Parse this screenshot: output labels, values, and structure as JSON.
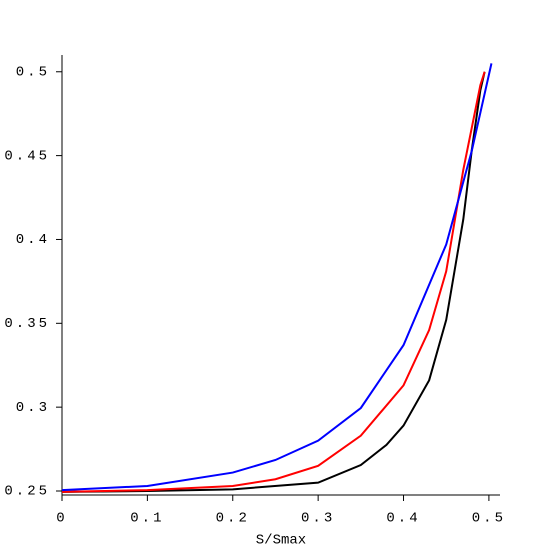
{
  "chart_data": {
    "type": "line",
    "xlabel": "S/Smax",
    "xlim": [
      0,
      0.513
    ],
    "ylim": [
      0.25,
      0.51
    ],
    "xticks": [
      0,
      0.1,
      0.2,
      0.3,
      0.4,
      0.5
    ],
    "yticks": [
      0.25,
      0.3,
      0.35,
      0.4,
      0.45,
      0.5
    ],
    "series": [
      {
        "color": "#000000",
        "x": [
          0,
          0.1,
          0.2,
          0.3,
          0.35,
          0.38,
          0.4,
          0.43,
          0.45,
          0.47,
          0.48,
          0.49,
          0.495
        ],
        "values": [
          0.2495,
          0.25,
          0.251,
          0.255,
          0.2655,
          0.2775,
          0.289,
          0.316,
          0.352,
          0.412,
          0.4535,
          0.489,
          0.5
        ]
      },
      {
        "color": "#ff0000",
        "x": [
          0,
          0.1,
          0.2,
          0.25,
          0.3,
          0.35,
          0.4,
          0.43,
          0.45,
          0.47,
          0.49,
          0.495
        ],
        "values": [
          0.2495,
          0.2505,
          0.253,
          0.257,
          0.265,
          0.283,
          0.313,
          0.346,
          0.381,
          0.4415,
          0.492,
          0.5
        ]
      },
      {
        "color": "#0000ff",
        "x": [
          0,
          0.1,
          0.2,
          0.25,
          0.3,
          0.35,
          0.4,
          0.45,
          0.48,
          0.503
        ],
        "values": [
          0.2505,
          0.253,
          0.261,
          0.2685,
          0.28,
          0.2995,
          0.337,
          0.397,
          0.453,
          0.505
        ]
      }
    ]
  }
}
